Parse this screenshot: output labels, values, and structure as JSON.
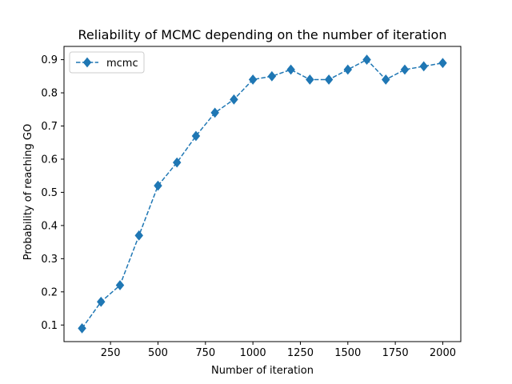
{
  "chart_data": {
    "type": "line",
    "title": "Reliability of MCMC depending on the number of iteration",
    "xlabel": "Number of iteration",
    "ylabel": "Probability of reaching GO",
    "xlim": [
      5,
      2095
    ],
    "ylim": [
      0.05,
      0.94
    ],
    "xticks": [
      250,
      500,
      750,
      1000,
      1250,
      1500,
      1750,
      2000
    ],
    "yticks": [
      0.1,
      0.2,
      0.3,
      0.4,
      0.5,
      0.6,
      0.7,
      0.8,
      0.9
    ],
    "grid": false,
    "legend_position": "top-left",
    "series": [
      {
        "name": "mcmc",
        "color": "#1f77b4",
        "line_style": "dashed",
        "marker": "diamond",
        "x": [
          100,
          200,
          300,
          400,
          500,
          600,
          700,
          800,
          900,
          1000,
          1100,
          1200,
          1300,
          1400,
          1500,
          1600,
          1700,
          1800,
          1900,
          2000
        ],
        "y": [
          0.09,
          0.17,
          0.22,
          0.37,
          0.52,
          0.59,
          0.67,
          0.74,
          0.78,
          0.84,
          0.85,
          0.87,
          0.84,
          0.84,
          0.87,
          0.9,
          0.84,
          0.87,
          0.88,
          0.89
        ]
      }
    ]
  }
}
